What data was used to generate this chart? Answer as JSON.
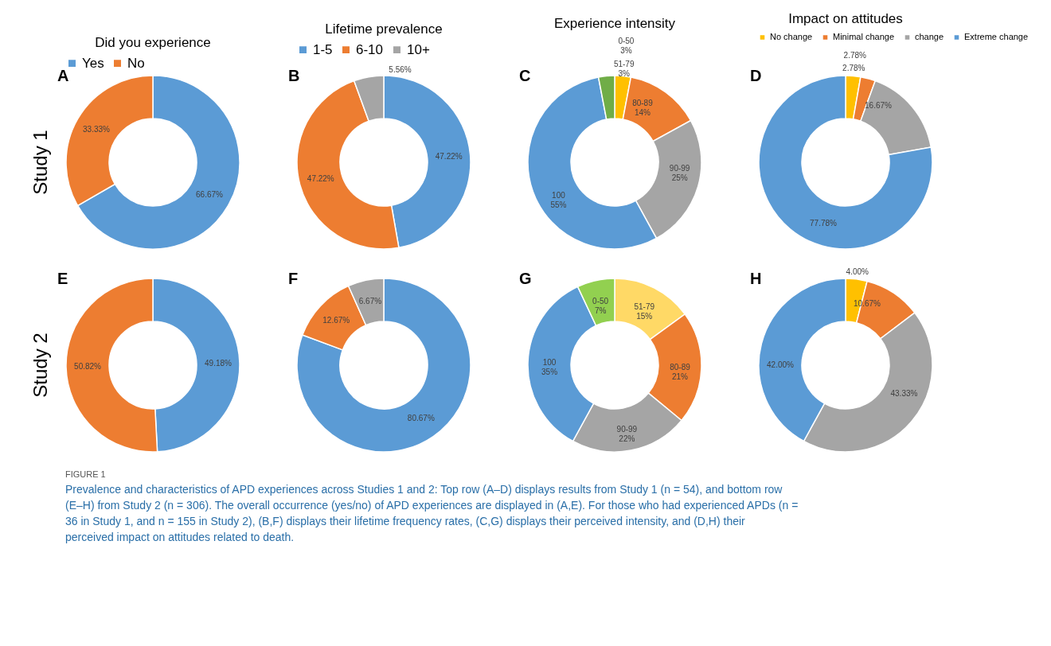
{
  "chart_data": [
    {
      "type": "donut",
      "title": "Did you experience",
      "ylabel": "Study 1",
      "annotations": [
        "A"
      ],
      "categories": [
        "Yes",
        "No"
      ],
      "values": [
        66.67,
        33.33
      ],
      "value_labels": [
        "66.67%",
        "33.33%"
      ],
      "colors": [
        "#5b9bd5",
        "#ed7d31"
      ],
      "legend": "top"
    },
    {
      "type": "donut",
      "title": "Lifetime prevalence",
      "annotations": [
        "B"
      ],
      "categories": [
        "1-5",
        "6-10",
        "10+"
      ],
      "values": [
        47.22,
        47.22,
        5.56
      ],
      "value_labels": [
        "47.22%",
        "47.22%",
        "5.56%"
      ],
      "colors": [
        "#5b9bd5",
        "#ed7d31",
        "#a5a5a5"
      ],
      "legend": "top"
    },
    {
      "type": "donut",
      "title": "Experience intensity",
      "annotations": [
        "C"
      ],
      "categories": [
        "51-79",
        "80-89",
        "90-99",
        "100",
        "0-50"
      ],
      "values": [
        3,
        14,
        25,
        55,
        3
      ],
      "value_labels": [
        "3%",
        "14%",
        "25%",
        "55%",
        "3%"
      ],
      "colors": [
        "#ffc000",
        "#ed7d31",
        "#a5a5a5",
        "#5b9bd5",
        "#70ad47"
      ]
    },
    {
      "type": "donut",
      "title": "Impact on attitudes",
      "annotations": [
        "D"
      ],
      "categories": [
        "No change",
        "Minimal change",
        "change",
        "Extreme change"
      ],
      "values": [
        2.78,
        2.78,
        16.67,
        77.78
      ],
      "value_labels": [
        "2.78%",
        "2.78%",
        "16.67%",
        "77.78%"
      ],
      "colors": [
        "#ffc000",
        "#ed7d31",
        "#a5a5a5",
        "#5b9bd5"
      ],
      "legend": "top"
    },
    {
      "type": "donut",
      "ylabel": "Study 2",
      "annotations": [
        "E"
      ],
      "categories": [
        null,
        null
      ],
      "values": [
        49.18,
        50.82
      ],
      "value_labels": [
        "49.18%",
        "50.82%"
      ],
      "colors": [
        "#5b9bd5",
        "#ed7d31"
      ]
    },
    {
      "type": "donut",
      "annotations": [
        "F"
      ],
      "categories": [
        null,
        null,
        null
      ],
      "values": [
        80.67,
        12.67,
        6.67
      ],
      "value_labels": [
        "80.67%",
        "12.67%",
        "6.67%"
      ],
      "colors": [
        "#5b9bd5",
        "#ed7d31",
        "#a5a5a5"
      ]
    },
    {
      "type": "donut",
      "annotations": [
        "G"
      ],
      "categories": [
        "51-79",
        "80-89",
        "90-99",
        "100",
        "0-50"
      ],
      "values": [
        15,
        21,
        22,
        35,
        7
      ],
      "value_labels": [
        "15%",
        "21%",
        "22%",
        "35%",
        "7%"
      ],
      "colors": [
        "#ffd966",
        "#ed7d31",
        "#a5a5a5",
        "#5b9bd5",
        "#92d050"
      ]
    },
    {
      "type": "donut",
      "annotations": [
        "H"
      ],
      "categories": [
        null,
        null,
        null,
        null
      ],
      "values": [
        4.0,
        10.67,
        43.33,
        42.0
      ],
      "value_labels": [
        "4.00%",
        "10.67%",
        "43.33%",
        "42.00%"
      ],
      "colors": [
        "#ffc000",
        "#ed7d31",
        "#a5a5a5",
        "#5b9bd5"
      ]
    },
    {
      "type": "other",
      "annotations": [
        "FIGURE 1",
        "Prevalence and characteristics of APD experiences across Studies 1 and 2: Top row (A–D) displays results from Study 1 (n = 54), and bottom row (E–H) from Study 2 (n = 306). The overall occurrence (yes/no) of APD experiences are displayed in (A,E). For those who had experienced APDs (n = 36 in Study 1, and n = 155 in Study 2), (B,F) displays their lifetime frequency rates, (C,G) displays their perceived intensity, and (D,H) their perceived impact on attitudes related to death."
      ]
    }
  ]
}
